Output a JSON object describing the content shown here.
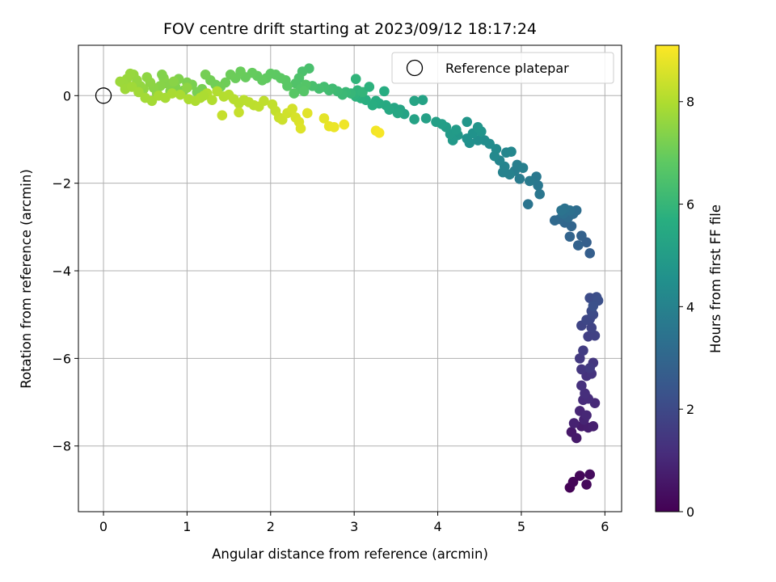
{
  "chart_data": {
    "type": "scatter",
    "title": "FOV centre drift starting at 2023/09/12 18:17:24",
    "xlabel": "Angular distance from reference (arcmin)",
    "ylabel": "Rotation from reference (arcmin)",
    "xlim": [
      -0.3,
      6.2
    ],
    "ylim": [
      -9.5,
      1.15
    ],
    "xticks": [
      "0",
      "1",
      "2",
      "3",
      "4",
      "5",
      "6"
    ],
    "yticks": [
      "0",
      "−2",
      "−4",
      "−6",
      "−8"
    ],
    "grid": true,
    "legend": {
      "placement": "top-right",
      "entries": [
        {
          "label": "Reference platepar",
          "marker": "open-circle"
        }
      ]
    },
    "reference_point": {
      "x": 0.0,
      "y": 0.0
    },
    "colorbar": {
      "label": "Hours from first FF file",
      "range": [
        0,
        9.1
      ],
      "ticks": [
        "0",
        "2",
        "4",
        "6",
        "8"
      ],
      "colormap": "viridis"
    },
    "points": [
      [
        5.58,
        -8.95,
        0.05
      ],
      [
        5.62,
        -8.82,
        0.1
      ],
      [
        5.7,
        -8.68,
        0.15
      ],
      [
        5.78,
        -8.88,
        0.2
      ],
      [
        5.82,
        -8.65,
        0.25
      ],
      [
        5.6,
        -7.68,
        0.6
      ],
      [
        5.66,
        -7.82,
        0.65
      ],
      [
        5.72,
        -7.55,
        0.7
      ],
      [
        5.8,
        -7.58,
        0.75
      ],
      [
        5.86,
        -7.55,
        0.8
      ],
      [
        5.63,
        -7.48,
        0.85
      ],
      [
        5.75,
        -7.4,
        0.9
      ],
      [
        5.7,
        -7.2,
        0.95
      ],
      [
        5.78,
        -7.3,
        1.0
      ],
      [
        5.88,
        -7.02,
        1.05
      ],
      [
        5.74,
        -6.95,
        1.1
      ],
      [
        5.8,
        -6.92,
        1.15
      ],
      [
        5.76,
        -6.8,
        1.2
      ],
      [
        5.72,
        -6.62,
        1.25
      ],
      [
        5.78,
        -6.4,
        1.3
      ],
      [
        5.84,
        -6.35,
        1.35
      ],
      [
        5.72,
        -6.25,
        1.4
      ],
      [
        5.86,
        -6.1,
        1.45
      ],
      [
        5.7,
        -6.0,
        1.5
      ],
      [
        5.82,
        -6.22,
        1.55
      ],
      [
        5.74,
        -5.82,
        1.6
      ],
      [
        5.8,
        -5.5,
        1.7
      ],
      [
        5.88,
        -5.48,
        1.75
      ],
      [
        5.84,
        -5.3,
        1.8
      ],
      [
        5.72,
        -5.25,
        1.85
      ],
      [
        5.82,
        -5.1,
        1.9
      ],
      [
        5.78,
        -5.12,
        1.95
      ],
      [
        5.86,
        -5.0,
        2.0
      ],
      [
        5.84,
        -4.92,
        2.05
      ],
      [
        5.82,
        -4.62,
        2.1
      ],
      [
        5.9,
        -4.6,
        2.15
      ],
      [
        5.92,
        -4.68,
        2.2
      ],
      [
        5.86,
        -4.8,
        2.25
      ],
      [
        5.82,
        -3.6,
        2.7
      ],
      [
        5.78,
        -3.35,
        2.75
      ],
      [
        5.72,
        -3.2,
        2.8
      ],
      [
        5.68,
        -3.42,
        2.85
      ],
      [
        5.58,
        -3.22,
        2.9
      ],
      [
        5.6,
        -2.98,
        2.95
      ],
      [
        5.52,
        -2.9,
        3.0
      ],
      [
        5.46,
        -2.82,
        3.05
      ],
      [
        5.4,
        -2.85,
        3.1
      ],
      [
        5.56,
        -2.78,
        3.15
      ],
      [
        5.62,
        -2.7,
        3.2
      ],
      [
        5.66,
        -2.62,
        3.25
      ],
      [
        5.5,
        -2.7,
        3.3
      ],
      [
        5.58,
        -2.62,
        3.35
      ],
      [
        5.52,
        -2.58,
        3.4
      ],
      [
        5.48,
        -2.62,
        3.45
      ],
      [
        5.08,
        -2.48,
        3.5
      ],
      [
        5.22,
        -2.25,
        3.55
      ],
      [
        5.2,
        -2.05,
        3.6
      ],
      [
        5.18,
        -1.85,
        3.65
      ],
      [
        5.1,
        -1.95,
        3.7
      ],
      [
        4.98,
        -1.9,
        3.75
      ],
      [
        4.92,
        -1.72,
        3.8
      ],
      [
        4.95,
        -1.58,
        3.85
      ],
      [
        5.02,
        -1.65,
        3.9
      ],
      [
        4.86,
        -1.8,
        3.95
      ],
      [
        4.78,
        -1.75,
        4.0
      ],
      [
        4.8,
        -1.62,
        4.05
      ],
      [
        4.74,
        -1.48,
        4.1
      ],
      [
        4.82,
        -1.3,
        4.15
      ],
      [
        4.88,
        -1.28,
        4.2
      ],
      [
        4.68,
        -1.38,
        4.25
      ],
      [
        4.7,
        -1.22,
        4.3
      ],
      [
        4.62,
        -1.1,
        4.35
      ],
      [
        4.56,
        -1.02,
        4.4
      ],
      [
        4.48,
        -1.02,
        4.45
      ],
      [
        4.38,
        -1.08,
        4.5
      ],
      [
        4.35,
        -0.98,
        4.55
      ],
      [
        4.42,
        -0.86,
        4.6
      ],
      [
        4.52,
        -0.82,
        4.65
      ],
      [
        4.48,
        -0.72,
        4.7
      ],
      [
        4.35,
        -0.6,
        4.75
      ],
      [
        4.24,
        -0.9,
        4.8
      ],
      [
        4.18,
        -1.02,
        4.85
      ],
      [
        4.15,
        -0.88,
        4.9
      ],
      [
        4.22,
        -0.78,
        4.95
      ],
      [
        4.1,
        -0.72,
        5.0
      ],
      [
        4.05,
        -0.65,
        5.05
      ],
      [
        3.98,
        -0.6,
        5.1
      ],
      [
        3.86,
        -0.52,
        5.15
      ],
      [
        3.72,
        -0.54,
        5.2
      ],
      [
        3.6,
        -0.42,
        5.25
      ],
      [
        3.55,
        -0.32,
        5.3
      ],
      [
        3.48,
        -0.28,
        5.35
      ],
      [
        3.52,
        -0.4,
        5.4
      ],
      [
        3.42,
        -0.32,
        5.45
      ],
      [
        3.38,
        -0.22,
        5.5
      ],
      [
        3.3,
        -0.18,
        5.55
      ],
      [
        3.26,
        -0.12,
        5.6
      ],
      [
        3.22,
        -0.22,
        5.65
      ],
      [
        3.14,
        -0.1,
        5.7
      ],
      [
        3.08,
        -0.06,
        5.75
      ],
      [
        3.02,
        -0.02,
        5.8
      ],
      [
        3.0,
        0.02,
        5.85
      ],
      [
        3.04,
        0.12,
        5.9
      ],
      [
        3.1,
        0.08,
        5.95
      ],
      [
        2.96,
        0.05,
        6.0
      ],
      [
        2.9,
        0.08,
        6.05
      ],
      [
        2.86,
        0.02,
        6.1
      ],
      [
        2.8,
        0.1,
        6.15
      ],
      [
        2.74,
        0.16,
        6.2
      ],
      [
        2.7,
        0.12,
        6.25
      ],
      [
        2.64,
        0.2,
        6.3
      ],
      [
        2.58,
        0.16,
        6.35
      ],
      [
        2.5,
        0.22,
        6.4
      ],
      [
        3.82,
        -0.1,
        5.2
      ],
      [
        3.72,
        -0.12,
        5.3
      ],
      [
        3.36,
        0.1,
        5.6
      ],
      [
        3.18,
        0.2,
        5.8
      ],
      [
        3.02,
        0.38,
        5.9
      ],
      [
        2.46,
        0.62,
        6.4
      ],
      [
        2.38,
        0.55,
        6.45
      ],
      [
        2.34,
        0.4,
        6.5
      ],
      [
        2.3,
        0.28,
        6.55
      ],
      [
        2.36,
        0.15,
        6.6
      ],
      [
        2.42,
        0.25,
        6.62
      ],
      [
        2.4,
        0.1,
        6.65
      ],
      [
        2.28,
        0.05,
        6.7
      ],
      [
        2.2,
        0.22,
        6.72
      ],
      [
        2.18,
        0.35,
        6.75
      ],
      [
        2.12,
        0.4,
        6.78
      ],
      [
        2.06,
        0.48,
        6.8
      ],
      [
        2.0,
        0.5,
        6.82
      ],
      [
        1.95,
        0.4,
        6.85
      ],
      [
        1.9,
        0.35,
        6.88
      ],
      [
        1.84,
        0.45,
        6.9
      ],
      [
        1.78,
        0.52,
        6.92
      ],
      [
        1.7,
        0.42,
        6.95
      ],
      [
        1.64,
        0.55,
        6.98
      ],
      [
        1.58,
        0.4,
        7.0
      ],
      [
        1.52,
        0.48,
        7.02
      ],
      [
        1.46,
        0.3,
        7.05
      ],
      [
        1.4,
        0.2,
        7.08
      ],
      [
        1.34,
        0.25,
        7.1
      ],
      [
        1.28,
        0.35,
        7.12
      ],
      [
        1.22,
        0.48,
        7.15
      ],
      [
        1.18,
        0.15,
        7.18
      ],
      [
        1.12,
        0.08,
        7.2
      ],
      [
        1.06,
        0.25,
        7.22
      ],
      [
        1.0,
        0.3,
        7.25
      ],
      [
        0.96,
        0.12,
        7.28
      ],
      [
        0.9,
        0.38,
        7.3
      ],
      [
        0.86,
        0.2,
        7.32
      ],
      [
        0.8,
        0.1,
        7.35
      ],
      [
        0.76,
        0.28,
        7.38
      ],
      [
        0.72,
        0.4,
        7.4
      ],
      [
        0.68,
        0.22,
        7.42
      ],
      [
        0.64,
        0.05,
        7.45
      ],
      [
        0.6,
        0.18,
        7.48
      ],
      [
        0.56,
        0.3,
        7.5
      ],
      [
        0.52,
        0.42,
        7.52
      ],
      [
        0.48,
        0.15,
        7.55
      ],
      [
        0.44,
        0.22,
        7.58
      ],
      [
        0.4,
        0.35,
        7.6
      ],
      [
        0.36,
        0.48,
        7.62
      ],
      [
        0.32,
        0.5,
        7.65
      ],
      [
        0.28,
        0.38,
        7.68
      ],
      [
        0.24,
        0.28,
        7.7
      ],
      [
        0.2,
        0.32,
        7.72
      ],
      [
        0.26,
        0.15,
        7.75
      ],
      [
        0.34,
        0.2,
        7.78
      ],
      [
        0.42,
        0.08,
        7.8
      ],
      [
        0.5,
        -0.05,
        7.82
      ],
      [
        0.58,
        -0.12,
        7.84
      ],
      [
        0.66,
        0.0,
        7.86
      ],
      [
        0.74,
        -0.05,
        7.88
      ],
      [
        0.82,
        0.05,
        7.9
      ],
      [
        0.92,
        0.02,
        7.92
      ],
      [
        1.02,
        -0.08,
        7.94
      ],
      [
        1.1,
        -0.12,
        7.96
      ],
      [
        1.16,
        -0.05,
        7.98
      ],
      [
        1.24,
        0.05,
        8.0
      ],
      [
        1.3,
        -0.1,
        8.02
      ],
      [
        1.36,
        0.1,
        8.04
      ],
      [
        1.44,
        -0.02,
        8.06
      ],
      [
        1.5,
        0.02,
        8.08
      ],
      [
        1.56,
        -0.08,
        8.1
      ],
      [
        1.62,
        -0.18,
        8.12
      ],
      [
        1.68,
        -0.1,
        8.14
      ],
      [
        1.74,
        -0.15,
        8.16
      ],
      [
        1.8,
        -0.22,
        8.18
      ],
      [
        1.86,
        -0.25,
        8.2
      ],
      [
        1.92,
        -0.12,
        8.22
      ],
      [
        2.02,
        -0.2,
        8.25
      ],
      [
        2.06,
        -0.35,
        8.28
      ],
      [
        1.42,
        -0.45,
        8.3
      ],
      [
        1.62,
        -0.38,
        8.32
      ],
      [
        2.1,
        -0.5,
        8.35
      ],
      [
        2.14,
        -0.55,
        8.4
      ],
      [
        2.2,
        -0.4,
        8.45
      ],
      [
        2.26,
        -0.3,
        8.5
      ],
      [
        2.3,
        -0.5,
        8.55
      ],
      [
        2.34,
        -0.6,
        8.6
      ],
      [
        2.36,
        -0.75,
        8.65
      ],
      [
        2.44,
        -0.4,
        8.7
      ],
      [
        2.64,
        -0.52,
        8.75
      ],
      [
        2.7,
        -0.7,
        8.8
      ],
      [
        2.76,
        -0.72,
        8.85
      ],
      [
        2.88,
        -0.66,
        8.9
      ],
      [
        3.26,
        -0.8,
        8.95
      ],
      [
        3.3,
        -0.85,
        9.0
      ],
      [
        1.2,
        0.0,
        7.95
      ],
      [
        1.0,
        0.18,
        7.5
      ],
      [
        0.84,
        0.32,
        7.45
      ],
      [
        0.7,
        0.48,
        7.35
      ]
    ]
  }
}
